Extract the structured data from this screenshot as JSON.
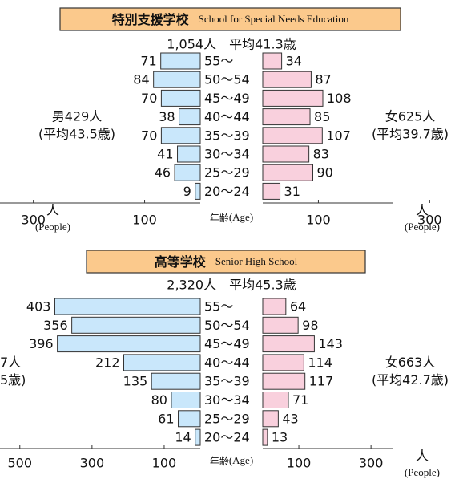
{
  "chart_data": [
    {
      "type": "pyramid",
      "title": "特別支援学校",
      "title_en": "School for Special Needs Education",
      "subtitle": "1,054人　平均41.3歳",
      "left_label": [
        "男429人",
        "(平均43.5歳)"
      ],
      "right_label": [
        "女625人",
        "(平均39.7歳)"
      ],
      "center_label": "年齢",
      "center_label_en": "(Age)",
      "unit": "人",
      "unit_en": "(People)",
      "unit_sides": [
        "left",
        "right"
      ],
      "categories": [
        "55～",
        "50～54",
        "45～49",
        "40～44",
        "35～39",
        "30～34",
        "25～29",
        "20～24"
      ],
      "series": [
        {
          "side": "left",
          "color": "#c9e7fb",
          "values": [
            71,
            84,
            70,
            38,
            70,
            41,
            46,
            9
          ]
        },
        {
          "side": "right",
          "color": "#f9d0dd",
          "values": [
            34,
            87,
            108,
            85,
            107,
            83,
            90,
            31
          ]
        }
      ],
      "xlim": [
        0,
        360
      ],
      "xticks_left": [
        100,
        300
      ],
      "xticks_right": [
        100,
        300
      ]
    },
    {
      "type": "pyramid",
      "title": "高等学校",
      "title_en": "Senior High School",
      "subtitle": "2,320人　平均45.3歳",
      "left_label": [
        "7人",
        "5歳)"
      ],
      "right_label": [
        "女663人",
        "(平均42.7歳)"
      ],
      "center_label": "年齢",
      "center_label_en": "(Age)",
      "unit": "人",
      "unit_en": "(People)",
      "unit_sides": [
        "right"
      ],
      "categories": [
        "55～",
        "50～54",
        "45～49",
        "40～44",
        "35～39",
        "30～34",
        "25～29",
        "20～24"
      ],
      "series": [
        {
          "side": "left",
          "color": "#c9e7fb",
          "values": [
            403,
            356,
            396,
            212,
            135,
            80,
            61,
            14
          ]
        },
        {
          "side": "right",
          "color": "#f9d0dd",
          "values": [
            64,
            98,
            143,
            114,
            117,
            71,
            43,
            13
          ]
        }
      ],
      "xlim": [
        0,
        555
      ],
      "xticks_left": [
        100,
        300,
        500
      ],
      "xticks_right": [
        100,
        300
      ]
    }
  ]
}
